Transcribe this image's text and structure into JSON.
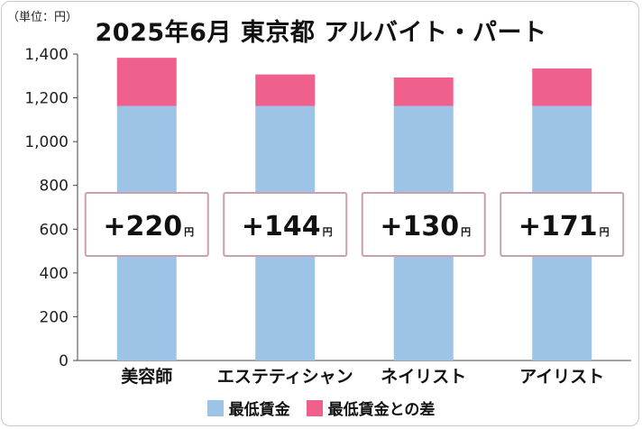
{
  "unit_label": "（単位：円）",
  "chart_data": {
    "type": "bar",
    "stacked": true,
    "title": "2025年6月 東京都 アルバイト・パート",
    "categories": [
      "美容師",
      "エステティシャン",
      "ネイリスト",
      "アイリスト"
    ],
    "series": [
      {
        "name": "最低賃金",
        "values": [
          1163,
          1163,
          1163,
          1163
        ],
        "color": "#9dc3e6"
      },
      {
        "name": "最低賃金との差",
        "values": [
          220,
          144,
          130,
          171
        ],
        "color": "#f0608d"
      }
    ],
    "diff_labels": [
      "+220",
      "+144",
      "+130",
      "+171"
    ],
    "diff_unit": "円",
    "ylim": [
      0,
      1400
    ],
    "yticks": [
      "0",
      "200",
      "400",
      "600",
      "800",
      "1,000",
      "1,200",
      "1,400"
    ],
    "ytick_values": [
      0,
      200,
      400,
      600,
      800,
      1000,
      1200,
      1400
    ],
    "grid": false,
    "legend_position": "bottom"
  }
}
